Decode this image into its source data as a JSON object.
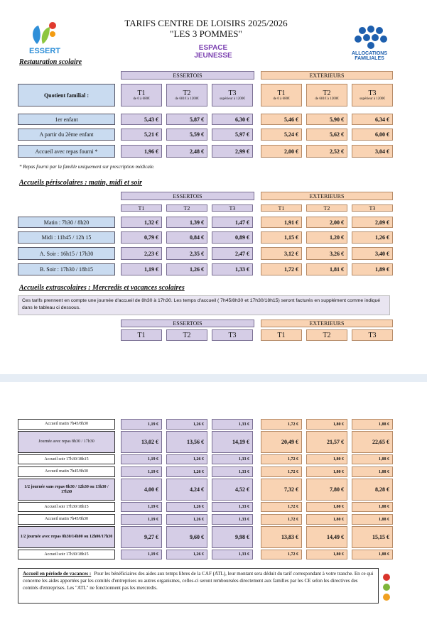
{
  "header": {
    "logo_left": "ESSERT",
    "title": "TARIFS CENTRE DE LOISIRS 2025/2026",
    "subtitle": "\"LES 3 POMMES\"",
    "logo_center": "ESPACE JEUNESSE",
    "logo_right": "ALLOCATIONS FAMILIALES"
  },
  "restauration": {
    "title": "Restauration scolaire",
    "groups": [
      "ESSERTOIS",
      "EXTERIEURS"
    ],
    "header_label": "Quotient familial :",
    "tiers": [
      {
        "name": "T1",
        "range": "de 0 à 680€"
      },
      {
        "name": "T2",
        "range": "de 681€ à 1200€"
      },
      {
        "name": "T3",
        "range": "supérieur à 1200€"
      },
      {
        "name": "T1",
        "range": "de 0 à 680€"
      },
      {
        "name": "T2",
        "range": "de 681€ à 1200€"
      },
      {
        "name": "T3",
        "range": "supérieur à 1200€"
      }
    ],
    "rows": [
      {
        "label": "1er enfant",
        "prices": [
          "5,43 €",
          "5,87 €",
          "6,30 €",
          "5,46 €",
          "5,90 €",
          "6,34 €"
        ]
      },
      {
        "label": "A partir du 2ème enfant",
        "prices": [
          "5,21 €",
          "5,59 €",
          "5,97 €",
          "5,24 €",
          "5,62 €",
          "6,00 €"
        ]
      },
      {
        "label": "Accueil avec repas fourni *",
        "prices": [
          "1,96 €",
          "2,48 €",
          "2,99 €",
          "2,00 €",
          "2,52 €",
          "3,04 €"
        ]
      }
    ],
    "note": "* Repas fourni par la famille uniquement sur prescription médicale."
  },
  "periscolaire": {
    "title": "Accueils périscolaires : matin, midi et soir",
    "groups": [
      "ESSERTOIS",
      "EXTERIEURS"
    ],
    "tiers": [
      "T1",
      "T2",
      "T3",
      "T1",
      "T2",
      "T3"
    ],
    "rows": [
      {
        "label": "Matin : 7h30 / 8h20",
        "prices": [
          "1,32 €",
          "1,39 €",
          "1,47 €",
          "1,91 €",
          "2,00 €",
          "2,09 €"
        ]
      },
      {
        "label": "Midi : 11h45 / 12h 15",
        "prices": [
          "0,79 €",
          "0,84 €",
          "0,89 €",
          "1,15 €",
          "1,20 €",
          "1,26 €"
        ]
      },
      {
        "label": "A. Soir : 16h15 / 17h30",
        "prices": [
          "2,23 €",
          "2,35 €",
          "2,47 €",
          "3,12 €",
          "3,26 €",
          "3,40 €"
        ]
      },
      {
        "label": "B. Soir : 17h30 / 18h15",
        "prices": [
          "1,19 €",
          "1,26 €",
          "1,33 €",
          "1,72 €",
          "1,81 €",
          "1,89 €"
        ]
      }
    ]
  },
  "extrascolaire": {
    "title": "Accueils extrascolaires : Mercredis et vacances scolaires",
    "intro": "Ces tarifs prennent en compte une journée d'accueil de 8h30 à 17h30. Les temps d'accueil ( 7h45/8h30 et 17h30/18h15) seront facturés en supplément comme indiqué dans le tableau ci dessous.",
    "groups": [
      "ESSERTOIS",
      "EXTERIEURS"
    ],
    "tiers": [
      "T1",
      "T2",
      "T3",
      "T1",
      "T2",
      "T3"
    ],
    "blocks": [
      [
        {
          "label": "Accueil matin 7h45/8h30",
          "prices": [
            "1,19 €",
            "1,26 €",
            "1,33 €",
            "1,72 €",
            "1,80 €",
            "1,88 €"
          ]
        },
        {
          "label": "Journée avec repas 8h30 / 17h30",
          "prices": [
            "13,02 €",
            "13,56 €",
            "14,19 €",
            "20,49 €",
            "21,57 €",
            "22,65 €"
          ]
        },
        {
          "label": "Accueil soir 17h30/18h15",
          "prices": [
            "1,19 €",
            "1,26 €",
            "1,33 €",
            "1,72 €",
            "1,80 €",
            "1,88 €"
          ]
        }
      ],
      [
        {
          "label": "Accueil matin 7h45/8h30",
          "prices": [
            "1,19 €",
            "1,26 €",
            "1,33 €",
            "1,72 €",
            "1,80 €",
            "1,88 €"
          ]
        },
        {
          "label": "1/2 journée sans repas 8h30 / 12h30 ou 13h30 / 17h30",
          "prices": [
            "4,00 €",
            "4,24 €",
            "4,52 €",
            "7,32 €",
            "7,80 €",
            "8,28 €"
          ]
        },
        {
          "label": "Accueil soir 17h30/18h15",
          "prices": [
            "1,19 €",
            "1,26 €",
            "1,33 €",
            "1,72 €",
            "1,80 €",
            "1,88 €"
          ]
        }
      ],
      [
        {
          "label": "Accueil matin 7h45/8h30",
          "prices": [
            "1,19 €",
            "1,26 €",
            "1,33 €",
            "1,72 €",
            "1,80 €",
            "1,88 €"
          ]
        },
        {
          "label": "1/2 journée avec repas 8h30/14h00 ou 12h00/17h30",
          "prices": [
            "9,27 €",
            "9,60 €",
            "9,98 €",
            "13,83 €",
            "14,49 €",
            "15,15 €"
          ]
        },
        {
          "label": "Accueil soir 17h30/18h15",
          "prices": [
            "1,19 €",
            "1,26 €",
            "1,33 €",
            "1,72 €",
            "1,80 €",
            "1,88 €"
          ]
        }
      ]
    ]
  },
  "vacances": {
    "title": "Accueil en période de vacances :",
    "text": "Pour les bénéficiaires des aides aux temps libres de la CAF (ATL), leur montant sera déduit du tarif correspondant à votre tranche. En ce qui concerne les aides apportées par les comités d'entreprises ou autres organismes, celles-ci seront remboursées directement aux familles par les CE selon les directives des comités d'entreprises. Les \"ATL\" ne fonctionnent pas les mercredis."
  }
}
